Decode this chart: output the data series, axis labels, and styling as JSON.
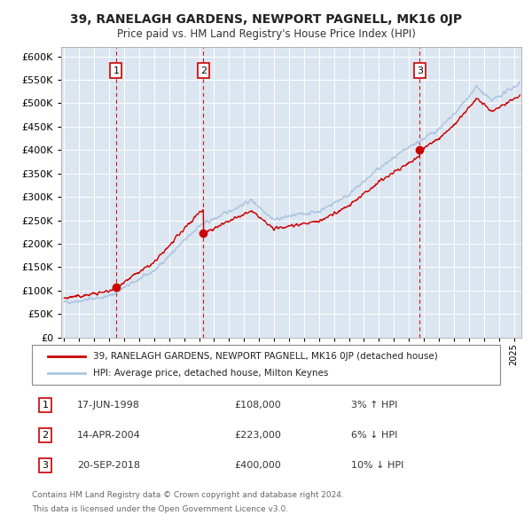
{
  "title": "39, RANELAGH GARDENS, NEWPORT PAGNELL, MK16 0JP",
  "subtitle": "Price paid vs. HM Land Registry's House Price Index (HPI)",
  "ylim": [
    0,
    620000
  ],
  "xlim_start": 1994.8,
  "xlim_end": 2025.5,
  "background_color": "#ffffff",
  "plot_bg_color": "#dce6f1",
  "grid_color": "#ffffff",
  "sale_color": "#cc0000",
  "hpi_color": "#aac4e0",
  "dashed_line_color": "#cc0000",
  "legend_label_sale": "39, RANELAGH GARDENS, NEWPORT PAGNELL, MK16 0JP (detached house)",
  "legend_label_hpi": "HPI: Average price, detached house, Milton Keynes",
  "sales": [
    {
      "date_num": 1998.46,
      "price": 108000,
      "label": "1",
      "date_str": "17-JUN-1998",
      "price_str": "£108,000",
      "hpi_str": "3% ↑ HPI"
    },
    {
      "date_num": 2004.28,
      "price": 223000,
      "label": "2",
      "date_str": "14-APR-2004",
      "price_str": "£223,000",
      "hpi_str": "6% ↓ HPI"
    },
    {
      "date_num": 2018.72,
      "price": 400000,
      "label": "3",
      "date_str": "20-SEP-2018",
      "price_str": "£400,000",
      "hpi_str": "10% ↓ HPI"
    }
  ],
  "footer_line1": "Contains HM Land Registry data © Crown copyright and database right 2024.",
  "footer_line2": "This data is licensed under the Open Government Licence v3.0."
}
